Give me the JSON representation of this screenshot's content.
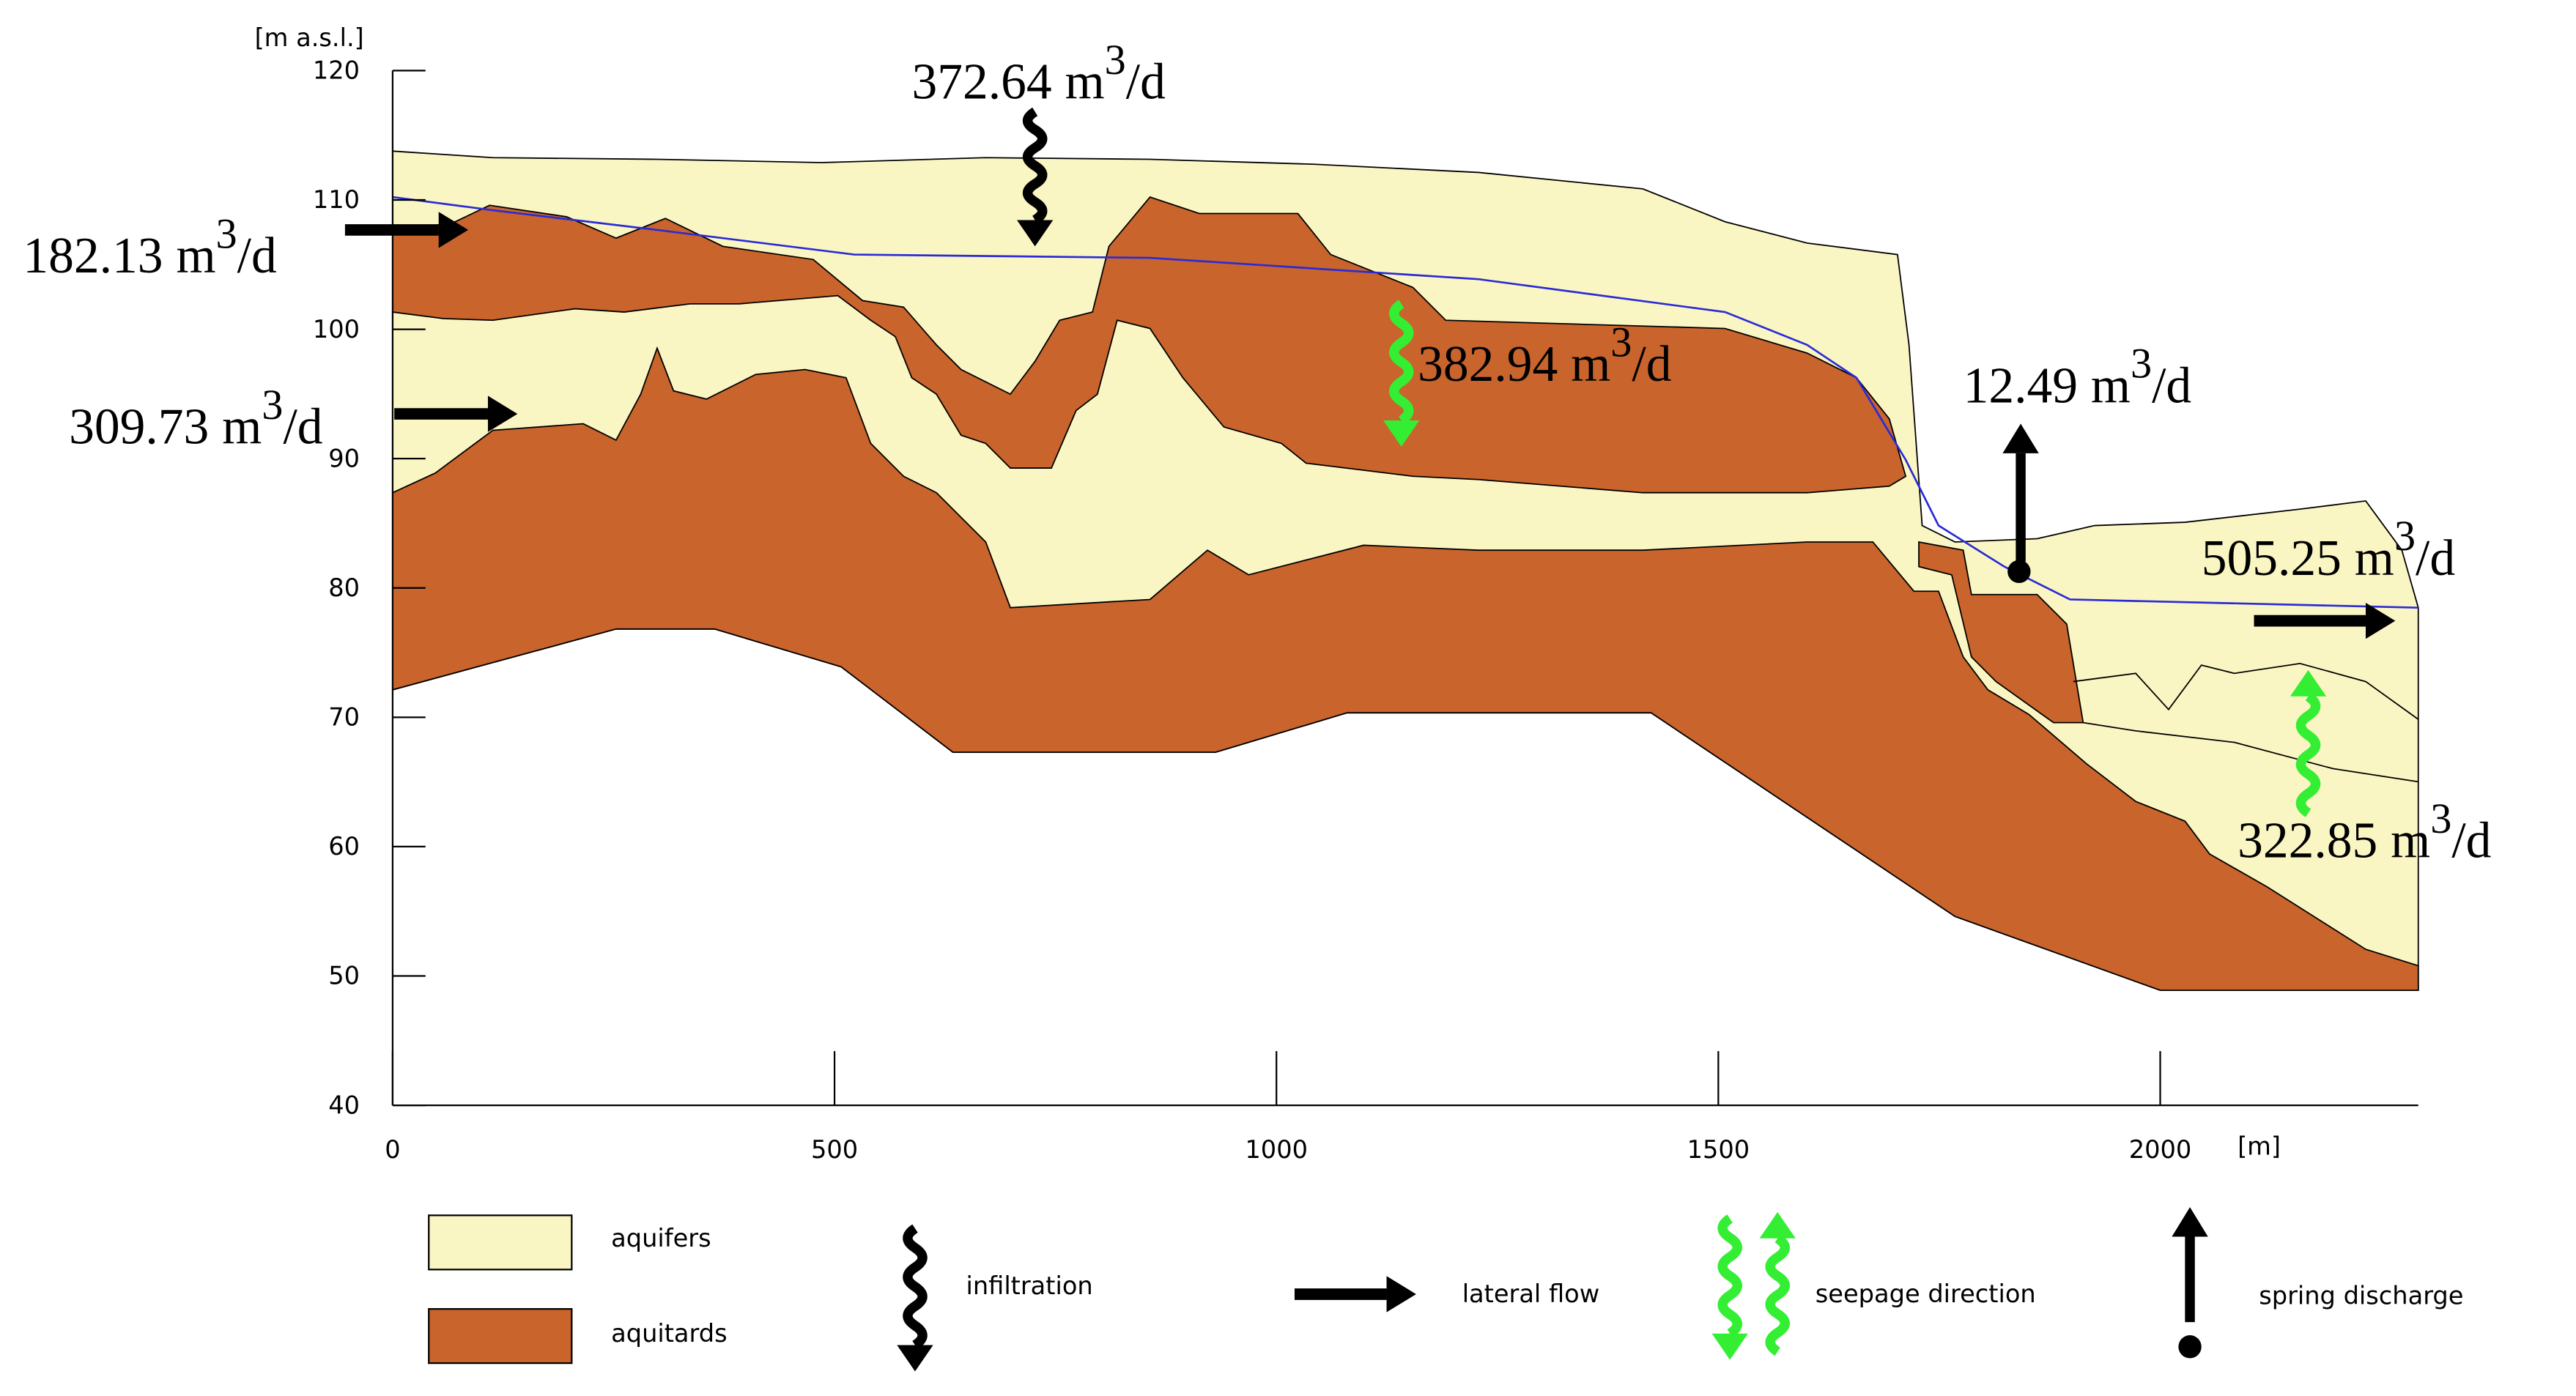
{
  "axes": {
    "y_unit": "[m a.s.l.]",
    "x_unit": "[m]",
    "ylim": [
      40,
      120
    ],
    "yticks": [
      40,
      50,
      60,
      70,
      80,
      90,
      100,
      110,
      120
    ],
    "xlim": [
      0,
      2292
    ],
    "xticks": [
      0,
      500,
      1000,
      1500,
      2000
    ]
  },
  "unit": {
    "base": "m",
    "exp": "3",
    "per": "/d"
  },
  "flows": [
    {
      "value": "372.64"
    },
    {
      "value": "182.13"
    },
    {
      "value": "309.73"
    },
    {
      "value": "382.94"
    },
    {
      "value": "12.49"
    },
    {
      "value": "505.25"
    },
    {
      "value": "322.85"
    }
  ],
  "legend": {
    "aquifers": "aquifers",
    "aquitards": "aquitards",
    "infiltration": "infiltration",
    "lateral_flow": "lateral flow",
    "seepage": "seepage direction",
    "spring": "spring discharge"
  }
}
